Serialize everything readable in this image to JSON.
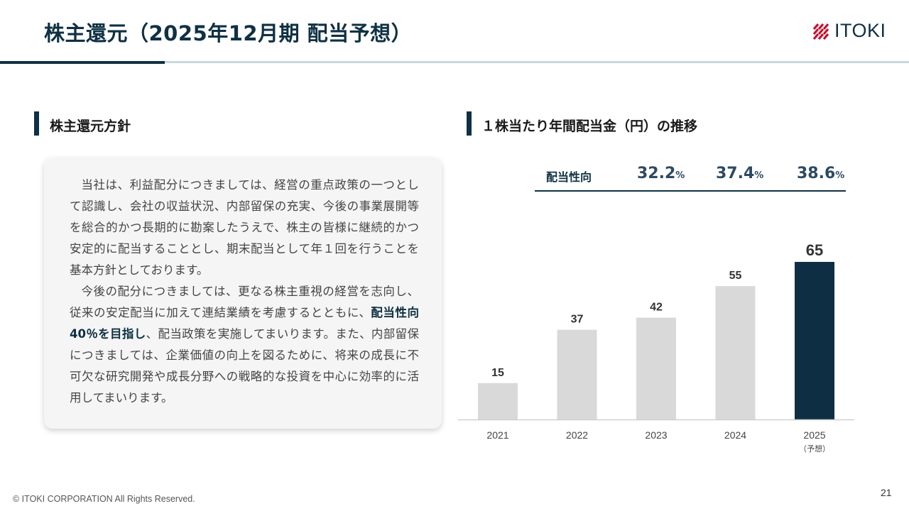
{
  "header": {
    "title": "株主還元（2025年12月期 配当予想）",
    "logo_text": "ITOKI"
  },
  "left_section": {
    "title": "株主還元方針",
    "paragraph1": "当社は、利益配分につきましては、経営の重点政策の一つとして認識し、会社の収益状況、内部留保の充実、今後の事業展開等を総合的かつ長期的に勘案したうえで、株主の皆様に継続的かつ安定的に配当することとし、期末配当として年１回を行うことを基本方針としております。",
    "paragraph2_before": "今後の配分につきましては、更なる株主重視の経営を志向し、従来の安定配当に加えて連結業績を考慮するとともに、",
    "paragraph2_emphasis": "配当性向40％を目指し",
    "paragraph2_after": "、配当政策を実施してまいります。また、内部留保につきましては、企業価値の向上を図るために、将来の成長に不可欠な研究開発や成長分野への戦略的な投資を中心に効率的に活用してまいります。"
  },
  "right_section": {
    "title": "１株当たり年間配当金（円）の推移",
    "payout_label": "配当性向",
    "payout_ratios": [
      {
        "value": "32.2",
        "unit": "%"
      },
      {
        "value": "37.4",
        "unit": "%"
      },
      {
        "value": "38.6",
        "unit": "%"
      }
    ]
  },
  "chart_data": {
    "type": "bar",
    "title": "１株当たり年間配当金（円）の推移",
    "categories": [
      "2021",
      "2022",
      "2023",
      "2024",
      "2025"
    ],
    "category_sublabels": [
      "",
      "",
      "",
      "",
      "（予想）"
    ],
    "values": [
      15,
      37,
      42,
      55,
      65
    ],
    "unit": "円",
    "colors": {
      "default": "#d9d9d9",
      "forecast": "#0e2f43"
    },
    "highlight_index": 4,
    "ylim": [
      0,
      65
    ],
    "grid": false
  },
  "footer": {
    "copyright": "© ITOKI CORPORATION All Rights Reserved.",
    "page_number": "21"
  }
}
